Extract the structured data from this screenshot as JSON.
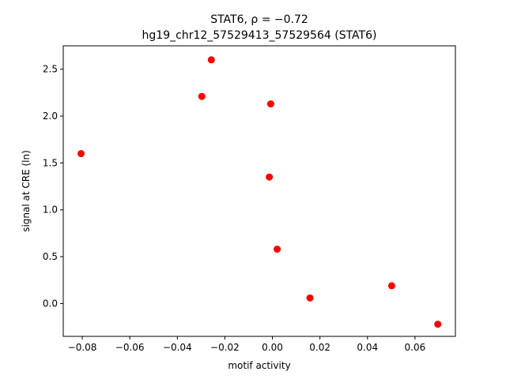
{
  "chart_data": {
    "type": "scatter",
    "title_line1": "STAT6, ρ = −0.72",
    "title_line2": "hg19_chr12_57529413_57529564 (STAT6)",
    "xlabel": "motif activity",
    "ylabel": "signal at CRE (ln)",
    "xlim": [
      -0.088,
      0.077
    ],
    "ylim": [
      -0.35,
      2.75
    ],
    "xticks": [
      -0.08,
      -0.06,
      -0.04,
      -0.02,
      0.0,
      0.02,
      0.04,
      0.06
    ],
    "xtick_labels": [
      "−0.08",
      "−0.06",
      "−0.04",
      "−0.02",
      "0.00",
      "0.02",
      "0.04",
      "0.06"
    ],
    "yticks": [
      0.0,
      0.5,
      1.0,
      1.5,
      2.0,
      2.5
    ],
    "ytick_labels": [
      "0.0",
      "0.5",
      "1.0",
      "1.5",
      "2.0",
      "2.5"
    ],
    "grid": false,
    "legend": "none",
    "marker_color": "#ff0000",
    "points": [
      {
        "x": -0.0805,
        "y": 1.6
      },
      {
        "x": -0.0297,
        "y": 2.21
      },
      {
        "x": -0.0257,
        "y": 2.6
      },
      {
        "x": -0.0007,
        "y": 2.13
      },
      {
        "x": -0.0013,
        "y": 1.35
      },
      {
        "x": 0.002,
        "y": 0.58
      },
      {
        "x": 0.0158,
        "y": 0.06
      },
      {
        "x": 0.0502,
        "y": 0.19
      },
      {
        "x": 0.0696,
        "y": -0.22
      }
    ]
  }
}
